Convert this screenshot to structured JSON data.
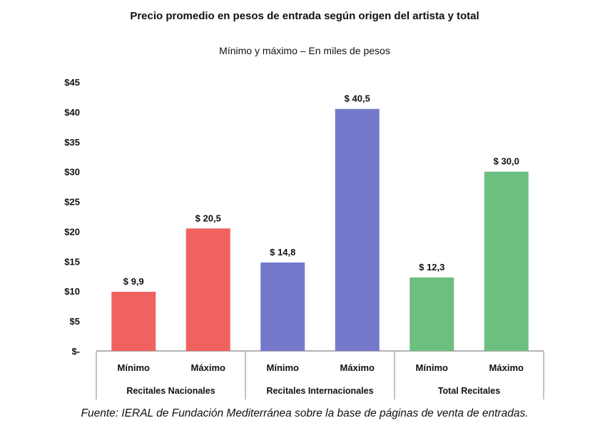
{
  "chart_data": {
    "type": "bar",
    "title": "Precio promedio en pesos de entrada según origen del artista y total",
    "subtitle": "Mínimo y máximo – En miles de pesos",
    "groups": [
      {
        "label": "Recitales Nacionales",
        "color": "#F0625F",
        "categories": [
          "Mínimo",
          "Máximo"
        ],
        "values": [
          9.9,
          20.5
        ],
        "data_labels": [
          "$ 9,9",
          "$ 20,5"
        ]
      },
      {
        "label": "Recitales Internacionales",
        "color": "#7579CC",
        "categories": [
          "Mínimo",
          "Máximo"
        ],
        "values": [
          14.8,
          40.5
        ],
        "data_labels": [
          "$ 14,8",
          "$ 40,5"
        ]
      },
      {
        "label": "Total Recitales",
        "color": "#6DBF7F",
        "categories": [
          "Mínimo",
          "Máximo"
        ],
        "values": [
          12.3,
          30.0
        ],
        "data_labels": [
          "$ 12,3",
          "$ 30,0"
        ]
      }
    ],
    "yticks": [
      0,
      5,
      10,
      15,
      20,
      25,
      30,
      35,
      40,
      45
    ],
    "ytick_labels": [
      "$-",
      "$5",
      "$10",
      "$15",
      "$20",
      "$25",
      "$30",
      "$35",
      "$40",
      "$45"
    ],
    "ylim": [
      0,
      45
    ],
    "grid": false,
    "legend": "none"
  },
  "source": "Fuente: IERAL de Fundación Mediterránea sobre la base de páginas de venta de entradas."
}
